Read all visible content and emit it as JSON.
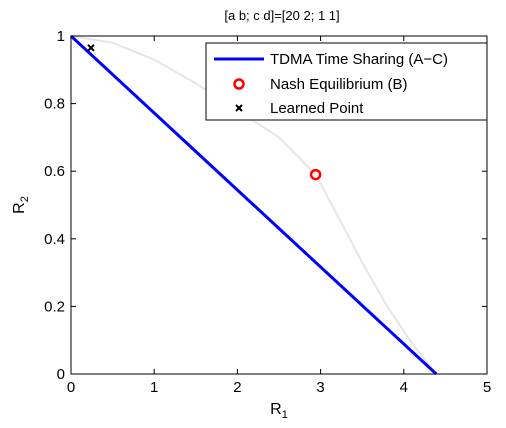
{
  "chart_data": {
    "type": "line",
    "title": "[a  b; c  d]=[20 2; 1 1]",
    "xlabel": "R",
    "xlabel_sub": "1",
    "ylabel": "R",
    "ylabel_sub": "2",
    "xlim": [
      0,
      5
    ],
    "ylim": [
      0,
      1
    ],
    "xticks": [
      0,
      1,
      2,
      3,
      4,
      5
    ],
    "yticks": [
      0,
      0.2,
      0.4,
      0.6,
      0.8,
      1
    ],
    "xtick_labels": [
      "0",
      "1",
      "2",
      "3",
      "4",
      "5"
    ],
    "ytick_labels": [
      "0",
      "0.2",
      "0.4",
      "0.6",
      "0.8",
      "1"
    ],
    "grid": false,
    "legend_position": "top-right",
    "series": [
      {
        "name": "",
        "kind": "line",
        "color": "#e6e6e6",
        "x": [
          0,
          0.5,
          1.0,
          1.5,
          2.0,
          2.5,
          2.94,
          3.2,
          3.5,
          3.8,
          4.1,
          4.39
        ],
        "y": [
          1,
          0.98,
          0.93,
          0.86,
          0.78,
          0.7,
          0.59,
          0.47,
          0.33,
          0.2,
          0.09,
          0
        ]
      },
      {
        "name": "TDMA Time Sharing (A−C)",
        "kind": "line",
        "color": "#0000ff",
        "x": [
          0,
          4.39
        ],
        "y": [
          1,
          0
        ]
      },
      {
        "name": "Nash Equilibrium (B)",
        "kind": "marker-circle",
        "color": "#ff0000",
        "x": [
          2.94
        ],
        "y": [
          0.59
        ]
      },
      {
        "name": "Learned Point",
        "kind": "marker-x",
        "color": "#000000",
        "x": [
          0.24
        ],
        "y": [
          0.965
        ]
      }
    ]
  }
}
